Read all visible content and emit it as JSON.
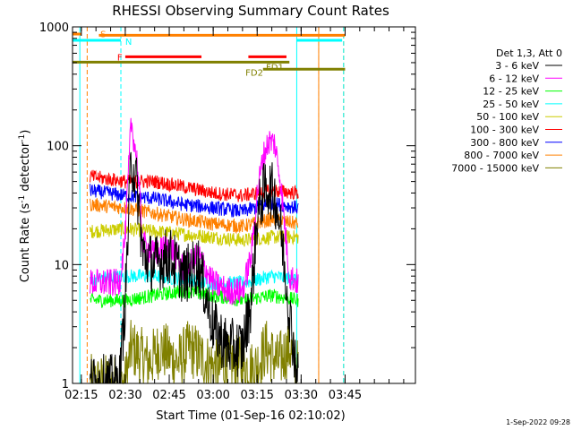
{
  "chart_data": {
    "type": "line",
    "title": "RHESSI Observing Summary Count Rates",
    "xlabel": "Start Time (01-Sep-16 02:10:02)",
    "ylabel_main": "Count Rate (s",
    "ylabel_sup1": "-1",
    "ylabel_mid": " detector",
    "ylabel_sup2": "-1",
    "ylabel_end": ")",
    "yscale": "log",
    "ylim": [
      1,
      1000
    ],
    "xlim_min": [
      12,
      129
    ],
    "y_ticks": [
      {
        "value": 1,
        "label": "1"
      },
      {
        "value": 10,
        "label": "10"
      },
      {
        "value": 100,
        "label": "100"
      },
      {
        "value": 1000,
        "label": "1000"
      }
    ],
    "x_ticks": [
      {
        "value": 15,
        "label": "02:15"
      },
      {
        "value": 30,
        "label": "02:30"
      },
      {
        "value": 45,
        "label": "02:45"
      },
      {
        "value": 60,
        "label": "03:00"
      },
      {
        "value": 75,
        "label": "03:15"
      },
      {
        "value": 90,
        "label": "03:30"
      },
      {
        "value": 105,
        "label": "03:45"
      }
    ],
    "legend_header": "Det 1,3, Att 0",
    "series": [
      {
        "name": "3 - 6 keV",
        "color": "#000000",
        "x": [
          18,
          26,
          28,
          30,
          32,
          34,
          36,
          40,
          45,
          50,
          55,
          60,
          65,
          70,
          73,
          75,
          77,
          79,
          81,
          83,
          86,
          89
        ],
        "y": [
          1,
          1,
          1,
          5,
          80,
          45,
          12,
          10,
          12,
          8,
          10,
          3,
          2,
          2,
          5,
          25,
          40,
          45,
          38,
          20,
          4,
          1
        ]
      },
      {
        "name": "6 - 12 keV",
        "color": "#ff00ff",
        "x": [
          18,
          26,
          28,
          30,
          32,
          34,
          36,
          40,
          45,
          50,
          55,
          60,
          65,
          70,
          73,
          75,
          77,
          79,
          81,
          83,
          86,
          89
        ],
        "y": [
          7,
          7,
          7,
          18,
          160,
          75,
          15,
          12,
          15,
          9,
          12,
          7,
          6,
          6,
          12,
          40,
          80,
          110,
          105,
          50,
          8,
          7
        ]
      },
      {
        "name": "12 - 25 keV",
        "color": "#00ff00",
        "x": [
          18,
          30,
          40,
          50,
          60,
          70,
          80,
          89
        ],
        "y": [
          5,
          5,
          5.5,
          6,
          5.5,
          5,
          5.5,
          5
        ]
      },
      {
        "name": "25 - 50 keV",
        "color": "#00ffff",
        "x": [
          18,
          30,
          40,
          50,
          60,
          70,
          80,
          89
        ],
        "y": [
          7.5,
          8,
          8,
          7.5,
          7,
          7,
          8,
          7.5
        ]
      },
      {
        "name": "50 - 100 keV",
        "color": "#cccc00",
        "x": [
          18,
          30,
          40,
          50,
          60,
          70,
          80,
          89
        ],
        "y": [
          19,
          20,
          19,
          18,
          17,
          16,
          17,
          17
        ]
      },
      {
        "name": "100 - 300 keV",
        "color": "#ff0000",
        "x": [
          18,
          30,
          40,
          50,
          60,
          70,
          80,
          89
        ],
        "y": [
          55,
          50,
          50,
          45,
          40,
          38,
          42,
          40
        ]
      },
      {
        "name": "300 - 800 keV",
        "color": "#0000ff",
        "x": [
          18,
          30,
          40,
          50,
          60,
          70,
          80,
          89
        ],
        "y": [
          42,
          38,
          36,
          32,
          30,
          28,
          33,
          30
        ]
      },
      {
        "name": "800 - 7000 keV",
        "color": "#ff8000",
        "x": [
          18,
          30,
          40,
          50,
          60,
          70,
          80,
          89
        ],
        "y": [
          32,
          30,
          27,
          24,
          22,
          21,
          24,
          22
        ]
      },
      {
        "name": "7000 - 15000 keV",
        "color": "#808000",
        "x": [
          18,
          30,
          32,
          38,
          42,
          48,
          52,
          58,
          62,
          66,
          70,
          74,
          78,
          82,
          86,
          89
        ],
        "y": [
          1,
          1,
          2,
          1.5,
          2,
          1.5,
          2,
          1.5,
          1.3,
          1.5,
          1.4,
          1.3,
          2,
          1.5,
          2,
          1.3
        ]
      }
    ],
    "flags": [
      {
        "label": "S",
        "color": "#ff8000"
      },
      {
        "label": "N",
        "color": "#00ffff"
      },
      {
        "label": "F",
        "color": "#ff0000"
      },
      {
        "label": "FD1",
        "color": "#808000"
      },
      {
        "label": "FD2",
        "color": "#808000"
      }
    ]
  },
  "footer_date": "1-Sep-2022 09:28"
}
